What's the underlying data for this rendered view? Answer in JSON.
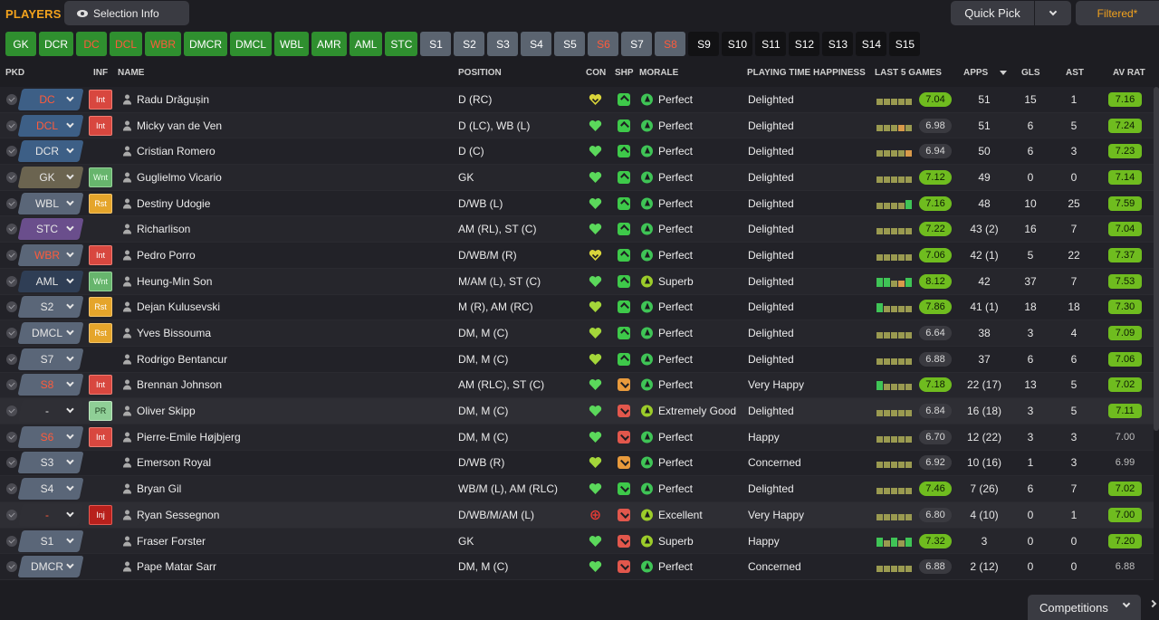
{
  "topbar": {
    "title": "PLAYERS",
    "selection_info": "Selection Info",
    "quick_pick": "Quick Pick",
    "filtered": "Filtered*"
  },
  "position_buttons": [
    {
      "label": "GK",
      "style": "green"
    },
    {
      "label": "DCR",
      "style": "green"
    },
    {
      "label": "DC",
      "style": "green-red"
    },
    {
      "label": "DCL",
      "style": "green-red"
    },
    {
      "label": "WBR",
      "style": "green-red"
    },
    {
      "label": "DMCR",
      "style": "green"
    },
    {
      "label": "DMCL",
      "style": "green"
    },
    {
      "label": "WBL",
      "style": "green"
    },
    {
      "label": "AMR",
      "style": "green"
    },
    {
      "label": "AML",
      "style": "green"
    },
    {
      "label": "STC",
      "style": "green"
    },
    {
      "label": "S1",
      "style": "grey"
    },
    {
      "label": "S2",
      "style": "grey"
    },
    {
      "label": "S3",
      "style": "grey"
    },
    {
      "label": "S4",
      "style": "grey"
    },
    {
      "label": "S5",
      "style": "grey"
    },
    {
      "label": "S6",
      "style": "grey-red"
    },
    {
      "label": "S7",
      "style": "grey"
    },
    {
      "label": "S8",
      "style": "grey-red"
    },
    {
      "label": "S9",
      "style": "black"
    },
    {
      "label": "S10",
      "style": "black"
    },
    {
      "label": "S11",
      "style": "black"
    },
    {
      "label": "S12",
      "style": "black"
    },
    {
      "label": "S13",
      "style": "black"
    },
    {
      "label": "S14",
      "style": "black"
    },
    {
      "label": "S15",
      "style": "black"
    }
  ],
  "columns": {
    "pkd": "PKD",
    "inf": "INF",
    "name": "NAME",
    "position": "POSITION",
    "con": "CON",
    "shp": "SHP",
    "morale": "MORALE",
    "pth": "PLAYING TIME HAPPINESS",
    "last5": "LAST 5 GAMES",
    "apps": "APPS",
    "gls": "GLS",
    "ast": "AST",
    "avrat": "AV RAT"
  },
  "colors": {
    "accent": "#f2a21d",
    "good": "#6fbc1f",
    "con_green": "#5bd85b",
    "con_yellow": "#d9d43a",
    "shp_green": "#3ec94a",
    "shp_orange": "#e89a3c",
    "shp_red": "#e2574c",
    "morale_green": "#3fc456",
    "morale_lime": "#9ccc2a"
  },
  "players": [
    {
      "sel": "DC",
      "sel_red": true,
      "sel_color": "#3d5f86",
      "inf": "Int",
      "inf_type": "int",
      "name": "Radu Drăgușin",
      "position": "D (RC)",
      "con": "yellow",
      "shp": "green-up",
      "morale_color": "#3fc456",
      "morale": "Perfect",
      "pth": "Delighted",
      "last5": [
        "#9a9a50",
        "#9a9a50",
        "#9a9a50",
        "#9a9a50",
        "#9a9a50"
      ],
      "avg": "7.04",
      "avg_good": true,
      "apps": "51",
      "gls": "15",
      "ast": "1",
      "avrat": "7.16",
      "avrat_good": true
    },
    {
      "sel": "DCL",
      "sel_red": true,
      "sel_color": "#3d5f86",
      "inf": "Int",
      "inf_type": "int",
      "name": "Micky van de Ven",
      "position": "D (LC), WB (L)",
      "con": "green",
      "shp": "green-up",
      "morale_color": "#3fc456",
      "morale": "Perfect",
      "pth": "Delighted",
      "last5": [
        "#9a9a50",
        "#9a9a50",
        "#9a9a50",
        "#d89a4a",
        "#9a9a50"
      ],
      "avg": "6.98",
      "avg_good": false,
      "apps": "51",
      "gls": "6",
      "ast": "5",
      "avrat": "7.24",
      "avrat_good": true
    },
    {
      "sel": "DCR",
      "sel_red": false,
      "sel_color": "#3d5f86",
      "inf": "",
      "inf_type": "",
      "name": "Cristian Romero",
      "position": "D (C)",
      "con": "green",
      "shp": "green-up",
      "morale_color": "#3fc456",
      "morale": "Perfect",
      "pth": "Delighted",
      "last5": [
        "#9a9a50",
        "#9a9a50",
        "#9a9a50",
        "#9a9a50",
        "#d89a4a"
      ],
      "avg": "6.94",
      "avg_good": false,
      "apps": "50",
      "gls": "6",
      "ast": "3",
      "avrat": "7.23",
      "avrat_good": true
    },
    {
      "sel": "GK",
      "sel_red": false,
      "sel_color": "#6b6450",
      "inf": "Wnt",
      "inf_type": "wnt",
      "name": "Guglielmo Vicario",
      "position": "GK",
      "con": "green",
      "shp": "green-up",
      "morale_color": "#3fc456",
      "morale": "Perfect",
      "pth": "Delighted",
      "last5": [
        "#9a9a50",
        "#9a9a50",
        "#9a9a50",
        "#9a9a50",
        "#9a9a50"
      ],
      "avg": "7.12",
      "avg_good": true,
      "apps": "49",
      "gls": "0",
      "ast": "0",
      "avrat": "7.14",
      "avrat_good": true
    },
    {
      "sel": "WBL",
      "sel_red": false,
      "sel_color": "#5a6678",
      "inf": "Rst",
      "inf_type": "rst",
      "name": "Destiny Udogie",
      "position": "D/WB (L)",
      "con": "green",
      "shp": "green-up",
      "morale_color": "#3fc456",
      "morale": "Perfect",
      "pth": "Delighted",
      "last5": [
        "#9a9a50",
        "#9a9a50",
        "#9a9a50",
        "#9a9a50",
        "#3fc456"
      ],
      "avg": "7.16",
      "avg_good": true,
      "apps": "48",
      "gls": "10",
      "ast": "25",
      "avrat": "7.59",
      "avrat_good": true
    },
    {
      "sel": "STC",
      "sel_red": false,
      "sel_color": "#6a4e8c",
      "inf": "",
      "inf_type": "",
      "name": "Richarlison",
      "position": "AM (RL), ST (C)",
      "con": "green",
      "shp": "green-up2",
      "morale_color": "#3fc456",
      "morale": "Perfect",
      "pth": "Delighted",
      "last5": [
        "#9a9a50",
        "#9a9a50",
        "#9a9a50",
        "#9a9a50",
        "#9a9a50"
      ],
      "avg": "7.22",
      "avg_good": true,
      "apps": "43 (2)",
      "gls": "16",
      "ast": "7",
      "avrat": "7.04",
      "avrat_good": true
    },
    {
      "sel": "WBR",
      "sel_red": true,
      "sel_color": "#5a6678",
      "inf": "Int",
      "inf_type": "int",
      "name": "Pedro Porro",
      "position": "D/WB/M (R)",
      "con": "yellow",
      "shp": "green-up2",
      "morale_color": "#3fc456",
      "morale": "Perfect",
      "pth": "Delighted",
      "last5": [
        "#9a9a50",
        "#9a9a50",
        "#9a9a50",
        "#9a9a50",
        "#9a9a50"
      ],
      "avg": "7.06",
      "avg_good": true,
      "apps": "42 (1)",
      "gls": "5",
      "ast": "22",
      "avrat": "7.37",
      "avrat_good": true
    },
    {
      "sel": "AML",
      "sel_red": false,
      "sel_color": "#2f3e55",
      "inf": "Wnt",
      "inf_type": "wnt",
      "name": "Heung-Min Son",
      "position": "M/AM (L), ST (C)",
      "con": "green",
      "shp": "green-up",
      "morale_color": "#9ccc2a",
      "morale": "Superb",
      "pth": "Delighted",
      "last5": [
        "#3fc456",
        "#3fc456",
        "#9a9a50",
        "#d89a4a",
        "#3fc456"
      ],
      "avg": "8.12",
      "avg_good": true,
      "apps": "42",
      "gls": "37",
      "ast": "7",
      "avrat": "7.53",
      "avrat_good": true
    },
    {
      "sel": "S2",
      "sel_red": false,
      "sel_color": "#5a6678",
      "inf": "Rst",
      "inf_type": "rst",
      "name": "Dejan Kulusevski",
      "position": "M (R), AM (RC)",
      "con": "lime",
      "shp": "green-up",
      "morale_color": "#3fc456",
      "morale": "Perfect",
      "pth": "Delighted",
      "last5": [
        "#3fc456",
        "#9a9a50",
        "#9a9a50",
        "#9a9a50",
        "#9a9a50"
      ],
      "avg": "7.86",
      "avg_good": true,
      "apps": "41 (1)",
      "gls": "18",
      "ast": "18",
      "avrat": "7.30",
      "avrat_good": true
    },
    {
      "sel": "DMCL",
      "sel_red": false,
      "sel_color": "#5a6678",
      "inf": "Rst",
      "inf_type": "rst",
      "name": "Yves Bissouma",
      "position": "DM, M (C)",
      "con": "lime",
      "shp": "green-up",
      "morale_color": "#3fc456",
      "morale": "Perfect",
      "pth": "Delighted",
      "last5": [
        "#9a9a50",
        "#9a9a50",
        "#9a9a50",
        "#9a9a50",
        "#9a9a50"
      ],
      "avg": "6.64",
      "avg_good": false,
      "apps": "38",
      "gls": "3",
      "ast": "4",
      "avrat": "7.09",
      "avrat_good": true
    },
    {
      "sel": "S7",
      "sel_red": false,
      "sel_color": "#5a6678",
      "inf": "",
      "inf_type": "",
      "name": "Rodrigo Bentancur",
      "position": "DM, M (C)",
      "con": "lime",
      "shp": "green-up",
      "morale_color": "#3fc456",
      "morale": "Perfect",
      "pth": "Delighted",
      "last5": [
        "#9a9a50",
        "#9a9a50",
        "#9a9a50",
        "#9a9a50",
        "#9a9a50"
      ],
      "avg": "6.88",
      "avg_good": false,
      "apps": "37",
      "gls": "6",
      "ast": "6",
      "avrat": "7.06",
      "avrat_good": true
    },
    {
      "sel": "S8",
      "sel_red": true,
      "sel_color": "#5a6678",
      "inf": "Int",
      "inf_type": "int",
      "name": "Brennan Johnson",
      "position": "AM (RLC), ST (C)",
      "con": "green",
      "shp": "orange-down",
      "morale_color": "#3fc456",
      "morale": "Perfect",
      "pth": "Very Happy",
      "last5": [
        "#3fc456",
        "#9a9a50",
        "#9a9a50",
        "#9a9a50",
        "#9a9a50"
      ],
      "avg": "7.18",
      "avg_good": true,
      "apps": "22 (17)",
      "gls": "13",
      "ast": "5",
      "avrat": "7.02",
      "avrat_good": true
    },
    {
      "sel": "-",
      "sel_red": false,
      "sel_color": "#2f2f35",
      "inf": "PR",
      "inf_type": "pr",
      "name": "Oliver Skipp",
      "position": "DM, M (C)",
      "con": "green",
      "shp": "red-down",
      "morale_color": "#9ccc2a",
      "morale": "Extremely Good",
      "pth": "Delighted",
      "last5": [
        "#9a9a50",
        "#9a9a50",
        "#9a9a50",
        "#9a9a50",
        "#9a9a50"
      ],
      "avg": "6.84",
      "avg_good": false,
      "apps": "16 (18)",
      "gls": "3",
      "ast": "5",
      "avrat": "7.11",
      "avrat_good": true
    },
    {
      "sel": "S6",
      "sel_red": true,
      "sel_color": "#5a6678",
      "inf": "Int",
      "inf_type": "int",
      "name": "Pierre-Emile Højbjerg",
      "position": "DM, M (C)",
      "con": "green",
      "shp": "red-down",
      "morale_color": "#3fc456",
      "morale": "Perfect",
      "pth": "Happy",
      "last5": [
        "#9a9a50",
        "#9a9a50",
        "#9a9a50",
        "#9a9a50",
        "#9a9a50"
      ],
      "avg": "6.70",
      "avg_good": false,
      "apps": "12 (22)",
      "gls": "3",
      "ast": "3",
      "avrat": "7.00",
      "avrat_good": false
    },
    {
      "sel": "S3",
      "sel_red": false,
      "sel_color": "#5a6678",
      "inf": "",
      "inf_type": "",
      "name": "Emerson Royal",
      "position": "D/WB (R)",
      "con": "lime",
      "shp": "orange-down",
      "morale_color": "#3fc456",
      "morale": "Perfect",
      "pth": "Concerned",
      "last5": [
        "#9a9a50",
        "#9a9a50",
        "#9a9a50",
        "#9a9a50",
        "#9a9a50"
      ],
      "avg": "6.92",
      "avg_good": false,
      "apps": "10 (16)",
      "gls": "1",
      "ast": "3",
      "avrat": "6.99",
      "avrat_good": false
    },
    {
      "sel": "S4",
      "sel_red": false,
      "sel_color": "#5a6678",
      "inf": "",
      "inf_type": "",
      "name": "Bryan Gil",
      "position": "WB/M (L), AM (RLC)",
      "con": "green",
      "shp": "green-down",
      "morale_color": "#3fc456",
      "morale": "Perfect",
      "pth": "Delighted",
      "last5": [
        "#9a9a50",
        "#9a9a50",
        "#9a9a50",
        "#9a9a50",
        "#9a9a50"
      ],
      "avg": "7.46",
      "avg_good": true,
      "apps": "7 (26)",
      "gls": "6",
      "ast": "7",
      "avrat": "7.02",
      "avrat_good": true
    },
    {
      "sel": "-",
      "sel_red": true,
      "sel_color": "#2f2f35",
      "inf": "Inj",
      "inf_type": "inj",
      "name": "Ryan Sessegnon",
      "position": "D/WB/M/AM (L)",
      "con": "injury",
      "shp": "red-down",
      "morale_color": "#9ccc2a",
      "morale": "Excellent",
      "pth": "Very Happy",
      "last5": [
        "#9a9a50",
        "#9a9a50",
        "#9a9a50",
        "#9a9a50",
        "#9a9a50"
      ],
      "avg": "6.80",
      "avg_good": false,
      "apps": "4 (10)",
      "gls": "0",
      "ast": "1",
      "avrat": "7.00",
      "avrat_good": true
    },
    {
      "sel": "S1",
      "sel_red": false,
      "sel_color": "#5a6678",
      "inf": "",
      "inf_type": "",
      "name": "Fraser Forster",
      "position": "GK",
      "con": "green",
      "shp": "red-down",
      "morale_color": "#9ccc2a",
      "morale": "Superb",
      "pth": "Happy",
      "last5": [
        "#3fc456",
        "#9a9a50",
        "#3fc456",
        "#9a9a50",
        "#3fc456"
      ],
      "avg": "7.32",
      "avg_good": true,
      "apps": "3",
      "gls": "0",
      "ast": "0",
      "avrat": "7.20",
      "avrat_good": true
    },
    {
      "sel": "DMCR",
      "sel_red": false,
      "sel_color": "#5a6678",
      "inf": "",
      "inf_type": "",
      "name": "Pape Matar Sarr",
      "position": "DM, M (C)",
      "con": "green",
      "shp": "red-down",
      "morale_color": "#3fc456",
      "morale": "Perfect",
      "pth": "Concerned",
      "last5": [
        "#9a9a50",
        "#9a9a50",
        "#9a9a50",
        "#9a9a50",
        "#9a9a50"
      ],
      "avg": "6.88",
      "avg_good": false,
      "apps": "2 (12)",
      "gls": "0",
      "ast": "0",
      "avrat": "6.88",
      "avrat_good": false
    }
  ],
  "footer": {
    "competitions": "Competitions"
  }
}
